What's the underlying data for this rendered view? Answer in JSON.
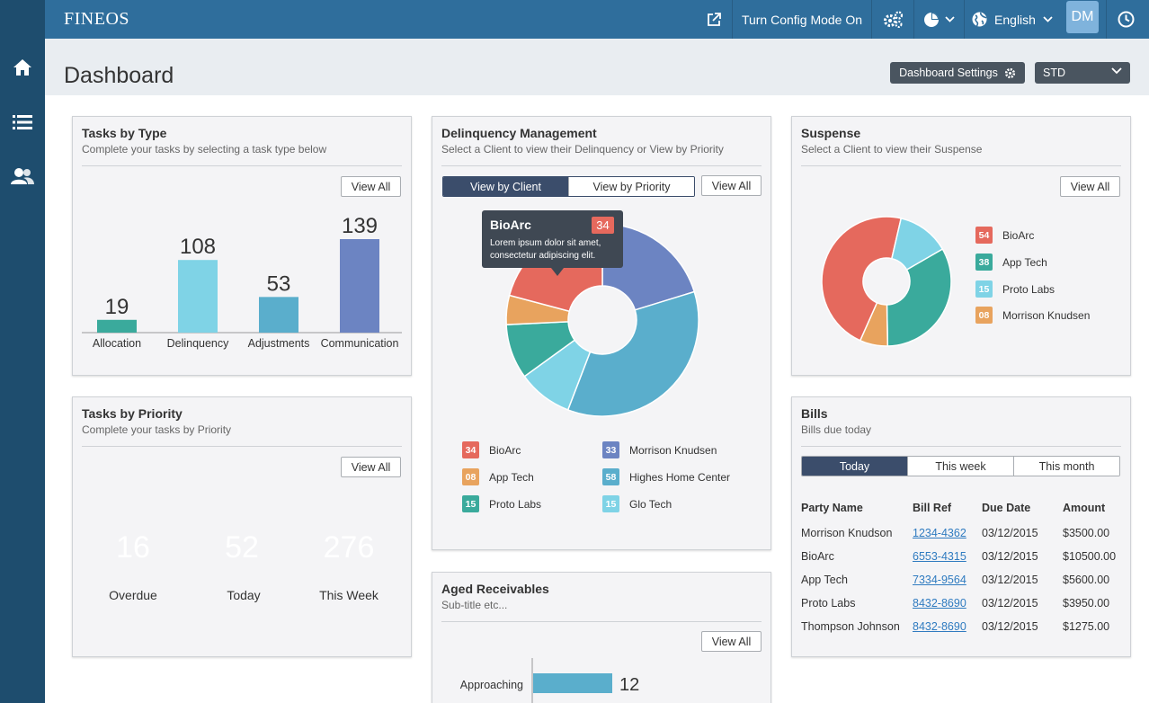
{
  "app": {
    "logo": "FINEOS"
  },
  "topbar": {
    "config_mode": "Turn Config Mode On",
    "language": "English",
    "avatar": "DM"
  },
  "page": {
    "title": "Dashboard",
    "settings_button": "Dashboard Settings",
    "view_select": "STD"
  },
  "tasks_by_type": {
    "title": "Tasks by Type",
    "subtitle": "Complete your tasks by selecting a task type below",
    "view_all": "View All",
    "chart_data": {
      "type": "bar",
      "categories": [
        "Allocation",
        "Delinquency",
        "Adjustments",
        "Communication"
      ],
      "values": [
        19,
        108,
        53,
        139
      ],
      "colors": [
        "#3aaa9c",
        "#7fd3e6",
        "#5aaecc",
        "#6c84c2"
      ]
    }
  },
  "tasks_by_priority": {
    "title": "Tasks by Priority",
    "subtitle": "Complete your tasks by Priority",
    "view_all": "View All",
    "items": [
      {
        "value": "16",
        "label": "Overdue",
        "color": "#e5695d"
      },
      {
        "value": "52",
        "label": "Today",
        "color": "#e8a35e"
      },
      {
        "value": "276",
        "label": "This Week",
        "color": "#3aaa9c"
      }
    ]
  },
  "delinquency": {
    "title": "Delinquency Management",
    "subtitle": "Select a Client to view their Delinquency or View by Priority",
    "tabs": [
      "View by Client",
      "View by Priority"
    ],
    "view_all": "View All",
    "tooltip": {
      "title": "BioArc",
      "value": "34",
      "body": "Lorem ipsum dolor sit amet, consectetur adipiscing elit."
    },
    "chart_data": {
      "type": "pie",
      "slices": [
        {
          "name": "BioArc",
          "value": 34,
          "color": "#e5695d"
        },
        {
          "name": "Morrison Knudsen",
          "value": 33,
          "color": "#6c84c2"
        },
        {
          "name": "App Tech",
          "value": 8,
          "color": "#e8a35e"
        },
        {
          "name": "Highes Home Center",
          "value": 58,
          "color": "#5aaecc"
        },
        {
          "name": "Proto Labs",
          "value": 15,
          "color": "#3aaa9c"
        },
        {
          "name": "Glo Tech",
          "value": 15,
          "color": "#7fd3e6"
        }
      ]
    },
    "legend": [
      {
        "badge": "34",
        "name": "BioArc",
        "color": "#e5695d"
      },
      {
        "badge": "08",
        "name": "App Tech",
        "color": "#e8a35e"
      },
      {
        "badge": "15",
        "name": "Proto Labs",
        "color": "#3aaa9c"
      },
      {
        "badge": "33",
        "name": "Morrison Knudsen",
        "color": "#6c84c2"
      },
      {
        "badge": "58",
        "name": "Highes Home Center",
        "color": "#5aaecc"
      },
      {
        "badge": "15",
        "name": "Glo Tech",
        "color": "#7fd3e6"
      }
    ]
  },
  "suspense": {
    "title": "Suspense",
    "subtitle": "Select a Client to view their Suspense",
    "view_all": "View All",
    "chart_data": {
      "type": "pie",
      "slices": [
        {
          "name": "BioArc",
          "value": 54,
          "color": "#e5695d"
        },
        {
          "name": "App Tech",
          "value": 38,
          "color": "#3aaa9c"
        },
        {
          "name": "Proto Labs",
          "value": 15,
          "color": "#7fd3e6"
        },
        {
          "name": "Morrison Knudsen",
          "value": 8,
          "color": "#e8a35e"
        }
      ]
    },
    "legend": [
      {
        "badge": "54",
        "name": "BioArc",
        "color": "#e5695d"
      },
      {
        "badge": "38",
        "name": "App Tech",
        "color": "#3aaa9c"
      },
      {
        "badge": "15",
        "name": "Proto Labs",
        "color": "#7fd3e6"
      },
      {
        "badge": "08",
        "name": "Morrison Knudsen",
        "color": "#e8a35e"
      }
    ]
  },
  "bills": {
    "title": "Bills",
    "subtitle": "Bills due today",
    "tabs": [
      "Today",
      "This week",
      "This month"
    ],
    "columns": [
      "Party Name",
      "Bill Ref",
      "Due Date",
      "Amount"
    ],
    "rows": [
      [
        "Morrison Knudson",
        "1234-4362",
        "03/12/2015",
        "$3500.00"
      ],
      [
        "BioArc",
        "6553-4315",
        "03/12/2015",
        "$10500.00"
      ],
      [
        "App Tech",
        "7334-9564",
        "03/12/2015",
        "$5600.00"
      ],
      [
        "Proto Labs",
        "8432-8690",
        "03/12/2015",
        "$3950.00"
      ],
      [
        "Thompson Johnson",
        "8432-8690",
        "03/12/2015",
        "$1275.00"
      ]
    ]
  },
  "aged_receivables": {
    "title": "Aged Receivables",
    "subtitle": "Sub-title etc...",
    "view_all": "View All",
    "chart_data": {
      "type": "bar",
      "categories": [
        "Approaching"
      ],
      "values": [
        12
      ],
      "color": "#5aaecc"
    }
  }
}
